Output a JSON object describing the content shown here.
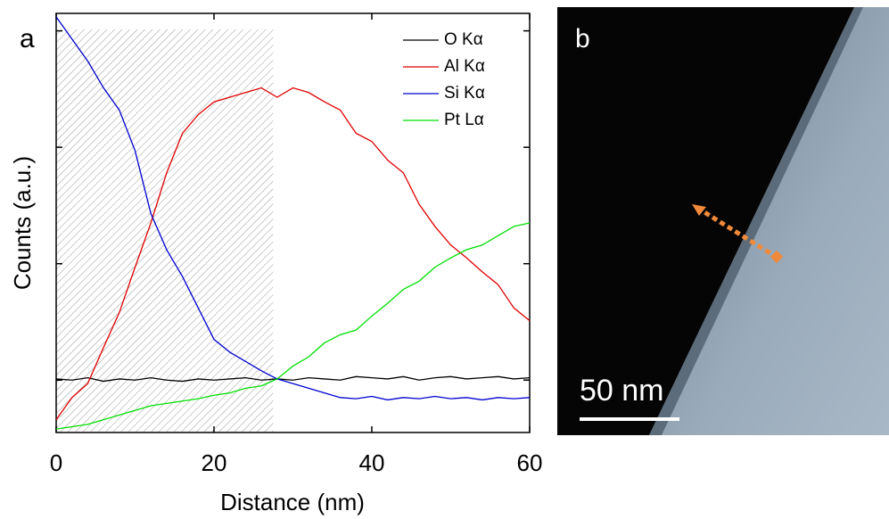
{
  "chart_data": {
    "type": "line",
    "panel_label": "a",
    "x_label": "Distance (nm)",
    "y_label": "Counts (a.u.)",
    "x": [
      0,
      2,
      4,
      6,
      8,
      10,
      12,
      14,
      16,
      18,
      20,
      22,
      24,
      26,
      28,
      30,
      32,
      34,
      36,
      38,
      40,
      42,
      44,
      46,
      48,
      50,
      52,
      54,
      56,
      58,
      60
    ],
    "series": [
      {
        "name": "O Kα",
        "color": "#000000",
        "values": [
          0.01,
          0.0,
          0.02,
          -0.01,
          0.01,
          0.0,
          0.02,
          0.0,
          -0.01,
          0.01,
          0.0,
          0.01,
          0.02,
          0.0,
          0.01,
          0.0,
          0.02,
          0.01,
          0.0,
          0.03,
          0.02,
          0.01,
          0.03,
          0.0,
          0.02,
          0.03,
          0.01,
          0.02,
          0.03,
          0.01,
          0.02
        ]
      },
      {
        "name": "Al Kα",
        "color": "#e00000",
        "values": [
          -0.34,
          -0.15,
          -0.03,
          0.28,
          0.58,
          0.97,
          1.35,
          1.78,
          2.12,
          2.28,
          2.39,
          2.43,
          2.47,
          2.51,
          2.43,
          2.51,
          2.47,
          2.39,
          2.32,
          2.12,
          2.05,
          1.89,
          1.78,
          1.51,
          1.32,
          1.16,
          1.05,
          0.93,
          0.82,
          0.62,
          0.51
        ]
      },
      {
        "name": "Si Kα",
        "color": "#0000d0",
        "values": [
          3.12,
          2.93,
          2.74,
          2.51,
          2.32,
          1.97,
          1.43,
          1.12,
          0.89,
          0.62,
          0.35,
          0.24,
          0.16,
          0.08,
          0.01,
          -0.03,
          -0.07,
          -0.11,
          -0.15,
          -0.16,
          -0.14,
          -0.17,
          -0.15,
          -0.16,
          -0.14,
          -0.16,
          -0.15,
          -0.17,
          -0.15,
          -0.16,
          -0.15
        ]
      },
      {
        "name": "Pt Lα",
        "color": "#00e000",
        "values": [
          -0.42,
          -0.4,
          -0.38,
          -0.34,
          -0.3,
          -0.26,
          -0.22,
          -0.2,
          -0.18,
          -0.16,
          -0.13,
          -0.11,
          -0.07,
          -0.05,
          0.01,
          0.12,
          0.2,
          0.32,
          0.39,
          0.43,
          0.55,
          0.66,
          0.78,
          0.85,
          0.97,
          1.05,
          1.12,
          1.16,
          1.24,
          1.32,
          1.35
        ]
      }
    ],
    "xlim": [
      0,
      60
    ],
    "xticks": [
      0,
      20,
      40,
      60
    ],
    "ylim": [
      -0.45,
      3.15
    ],
    "yticks": [
      0,
      1,
      2,
      3
    ],
    "highlight_xrange": [
      0,
      27.5
    ],
    "legend": "upper right"
  },
  "image_panel": {
    "label": "b",
    "scale_bar": "50 nm"
  }
}
